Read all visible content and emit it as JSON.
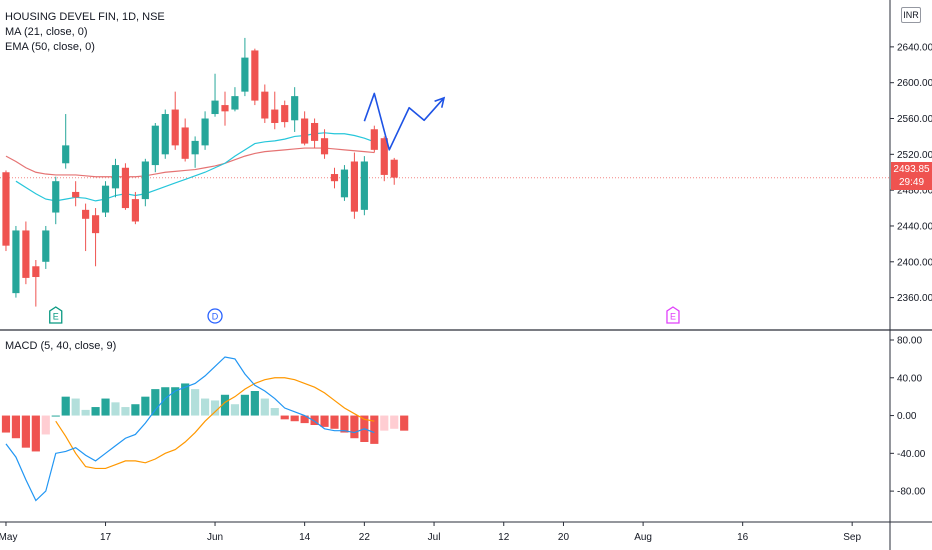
{
  "header": {
    "symbol_line": "HOUSING DEVEL FIN, 1D, NSE",
    "ma_legend": "MA (21, close, 0)",
    "ema_legend": "EMA (50, close, 0)",
    "macd_legend": "MACD (5, 40, close, 9)",
    "currency_badge": "INR"
  },
  "price_label": {
    "price": "2493.85",
    "countdown": "29:49"
  },
  "event_markers": [
    {
      "label": "E",
      "index": 5,
      "color": "#089981"
    },
    {
      "label": "D",
      "index": 21,
      "color": "#2962ff"
    },
    {
      "label": "E",
      "index": 67,
      "color": "#e040fb"
    }
  ],
  "colors": {
    "up": "#26a69a",
    "down": "#ef5350",
    "ma_line": "#26c6da",
    "ema_line": "#e57373",
    "macd_line": "#2196f3",
    "signal_line": "#ff9800",
    "hist_up_strong": "#26a69a",
    "hist_up_weak": "#b2dfdb",
    "hist_down_strong": "#ef5350",
    "hist_down_weak": "#ffcdd2",
    "projection": "#1e53e5"
  },
  "chart_data": [
    {
      "type": "candlestick",
      "title": "HOUSING DEVEL FIN, 1D, NSE",
      "ylim": [
        2335,
        2670
      ],
      "yticks": [
        2360.0,
        2400.0,
        2440.0,
        2480.0,
        2520.0,
        2560.0,
        2600.0,
        2640.0
      ],
      "ytick_labels": [
        "2360.00",
        "2400.00",
        "2440.00",
        "2480.00",
        "2520.00",
        "2560.00",
        "2600.00",
        "2640.00"
      ],
      "x_ticks": [
        {
          "label": "May",
          "index": 0
        },
        {
          "label": "17",
          "index": 10
        },
        {
          "label": "Jun",
          "index": 21
        },
        {
          "label": "14",
          "index": 30
        },
        {
          "label": "22",
          "index": 36
        },
        {
          "label": "Jul",
          "index": 43
        },
        {
          "label": "12",
          "index": 50
        },
        {
          "label": "20",
          "index": 56
        },
        {
          "label": "Aug",
          "index": 64
        },
        {
          "label": "16",
          "index": 74
        },
        {
          "label": "Sep",
          "index": 85
        }
      ],
      "index_range": [
        -0.6,
        88.8
      ],
      "candles": [
        {
          "o": 2500,
          "h": 2502,
          "l": 2412,
          "c": 2418
        },
        {
          "o": 2365,
          "h": 2440,
          "l": 2360,
          "c": 2435
        },
        {
          "o": 2435,
          "h": 2445,
          "l": 2375,
          "c": 2382
        },
        {
          "o": 2395,
          "h": 2402,
          "l": 2350,
          "c": 2383
        },
        {
          "o": 2400,
          "h": 2440,
          "l": 2392,
          "c": 2435
        },
        {
          "o": 2455,
          "h": 2495,
          "l": 2442,
          "c": 2490
        },
        {
          "o": 2510,
          "h": 2565,
          "l": 2504,
          "c": 2530
        },
        {
          "o": 2478,
          "h": 2490,
          "l": 2462,
          "c": 2472
        },
        {
          "o": 2458,
          "h": 2465,
          "l": 2412,
          "c": 2448
        },
        {
          "o": 2452,
          "h": 2460,
          "l": 2395,
          "c": 2432
        },
        {
          "o": 2455,
          "h": 2490,
          "l": 2450,
          "c": 2485
        },
        {
          "o": 2482,
          "h": 2515,
          "l": 2472,
          "c": 2508
        },
        {
          "o": 2505,
          "h": 2510,
          "l": 2458,
          "c": 2460
        },
        {
          "o": 2470,
          "h": 2478,
          "l": 2442,
          "c": 2445
        },
        {
          "o": 2470,
          "h": 2515,
          "l": 2462,
          "c": 2512
        },
        {
          "o": 2508,
          "h": 2555,
          "l": 2500,
          "c": 2552
        },
        {
          "o": 2520,
          "h": 2570,
          "l": 2515,
          "c": 2565
        },
        {
          "o": 2570,
          "h": 2590,
          "l": 2525,
          "c": 2530
        },
        {
          "o": 2550,
          "h": 2560,
          "l": 2512,
          "c": 2515
        },
        {
          "o": 2520,
          "h": 2540,
          "l": 2505,
          "c": 2535
        },
        {
          "o": 2530,
          "h": 2568,
          "l": 2525,
          "c": 2560
        },
        {
          "o": 2565,
          "h": 2610,
          "l": 2562,
          "c": 2580
        },
        {
          "o": 2575,
          "h": 2590,
          "l": 2552,
          "c": 2568
        },
        {
          "o": 2570,
          "h": 2595,
          "l": 2568,
          "c": 2585
        },
        {
          "o": 2590,
          "h": 2650,
          "l": 2585,
          "c": 2628
        },
        {
          "o": 2636,
          "h": 2638,
          "l": 2575,
          "c": 2580
        },
        {
          "o": 2590,
          "h": 2598,
          "l": 2555,
          "c": 2560
        },
        {
          "o": 2570,
          "h": 2590,
          "l": 2548,
          "c": 2555
        },
        {
          "o": 2575,
          "h": 2580,
          "l": 2550,
          "c": 2556
        },
        {
          "o": 2558,
          "h": 2595,
          "l": 2545,
          "c": 2585
        },
        {
          "o": 2560,
          "h": 2568,
          "l": 2530,
          "c": 2532
        },
        {
          "o": 2555,
          "h": 2560,
          "l": 2527,
          "c": 2535
        },
        {
          "o": 2538,
          "h": 2548,
          "l": 2515,
          "c": 2520
        },
        {
          "o": 2498,
          "h": 2505,
          "l": 2482,
          "c": 2490
        },
        {
          "o": 2472,
          "h": 2508,
          "l": 2468,
          "c": 2503
        },
        {
          "o": 2512,
          "h": 2522,
          "l": 2448,
          "c": 2456
        },
        {
          "o": 2458,
          "h": 2518,
          "l": 2452,
          "c": 2512
        },
        {
          "o": 2548,
          "h": 2552,
          "l": 2522,
          "c": 2525
        },
        {
          "o": 2538,
          "h": 2540,
          "l": 2490,
          "c": 2497
        },
        {
          "o": 2514,
          "h": 2516,
          "l": 2486,
          "c": 2494
        }
      ],
      "series": [
        {
          "name": "MA (21, close, 0)",
          "values": [
            null,
            2490,
            2483,
            2476,
            2470,
            2468,
            2470,
            2472,
            2471,
            2468,
            2470,
            2474,
            2476,
            2474,
            2476,
            2480,
            2484,
            2488,
            2492,
            2496,
            2500,
            2505,
            2510,
            2518,
            2525,
            2532,
            2534,
            2535,
            2537,
            2540,
            2541,
            2543,
            2544,
            2543,
            2543,
            2541,
            2538,
            2534
          ]
        },
        {
          "name": "EMA (50, close, 0)",
          "values": [
            2518,
            2512,
            2505,
            2500,
            2498,
            2497,
            2497,
            2497,
            2496,
            2495,
            2495,
            2495,
            2495,
            2495,
            2496,
            2498,
            2500,
            2501,
            2502,
            2503,
            2505,
            2507,
            2510,
            2514,
            2518,
            2521,
            2523,
            2524,
            2525,
            2526,
            2527,
            2527,
            2527,
            2526,
            2525,
            2524,
            2523,
            2522
          ]
        }
      ],
      "projection": [
        {
          "x": 36.0,
          "y": 2557
        },
        {
          "x": 37.0,
          "y": 2588
        },
        {
          "x": 38.5,
          "y": 2525
        },
        {
          "x": 40.5,
          "y": 2572
        },
        {
          "x": 42.0,
          "y": 2558
        },
        {
          "x": 44.0,
          "y": 2583
        }
      ],
      "last_price": 2493.85
    },
    {
      "type": "macd",
      "title": "MACD (5, 40, close, 9)",
      "ylim": [
        -100,
        80
      ],
      "yticks": [
        -80,
        -40,
        0,
        40,
        80
      ],
      "ytick_labels": [
        "-80.00",
        "-40.00",
        "0.00",
        "40.00",
        "80.00"
      ],
      "histogram": [
        -18,
        -24,
        -34,
        -38,
        -20,
        0,
        20,
        18,
        6,
        9,
        18,
        14,
        9,
        12,
        20,
        28,
        30,
        30,
        34,
        28,
        18,
        16,
        22,
        12,
        22,
        26,
        18,
        8,
        -4,
        -6,
        -8,
        -10,
        -12,
        -14,
        -18,
        -24,
        -28,
        -30,
        -16,
        -14,
        -16
      ],
      "macd_line": [
        -30,
        -44,
        -68,
        -90,
        -80,
        -40,
        -38,
        -34,
        -42,
        -48,
        -40,
        -32,
        -24,
        -20,
        -8,
        6,
        18,
        26,
        30,
        34,
        42,
        52,
        62,
        60,
        44,
        32,
        26,
        18,
        8,
        4,
        0,
        -6,
        -14,
        -16,
        -16,
        -18,
        -14,
        -18
      ],
      "signal_line": [
        -6,
        -22,
        -40,
        -54,
        -56,
        -56,
        -52,
        -48,
        -48,
        -50,
        -46,
        -40,
        -36,
        -28,
        -18,
        -6,
        4,
        14,
        20,
        28,
        34,
        38,
        40,
        40,
        38,
        34,
        30,
        24,
        16,
        8,
        2,
        -4,
        -6
      ],
      "signal_offset": 5
    }
  ]
}
